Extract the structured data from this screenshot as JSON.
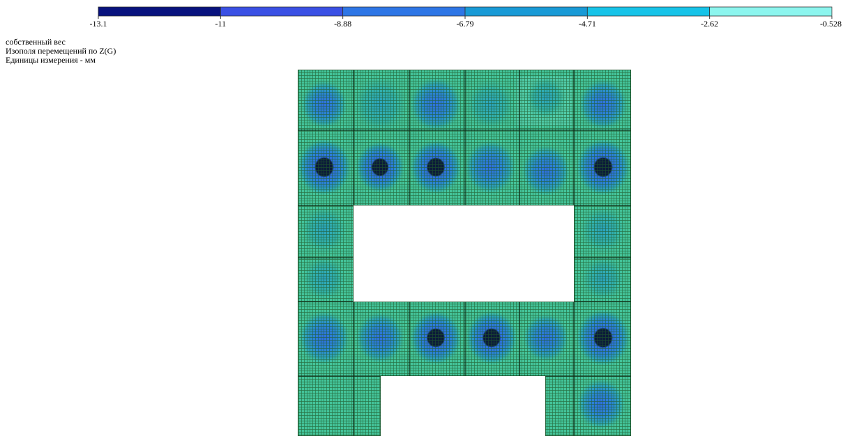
{
  "legend": {
    "labels": [
      "-13.1",
      "-11",
      "-8.88",
      "-6.79",
      "-4.71",
      "-2.62",
      "-0.528"
    ],
    "colors": [
      "#08127e",
      "#3a50e4",
      "#2e76e6",
      "#189ad6",
      "#16c3e8",
      "#8cf5ee"
    ]
  },
  "info": {
    "lines": [
      "собственный вес",
      "Изополя  перемещений по Z(G)",
      "Единицы измерения - мм"
    ]
  }
}
